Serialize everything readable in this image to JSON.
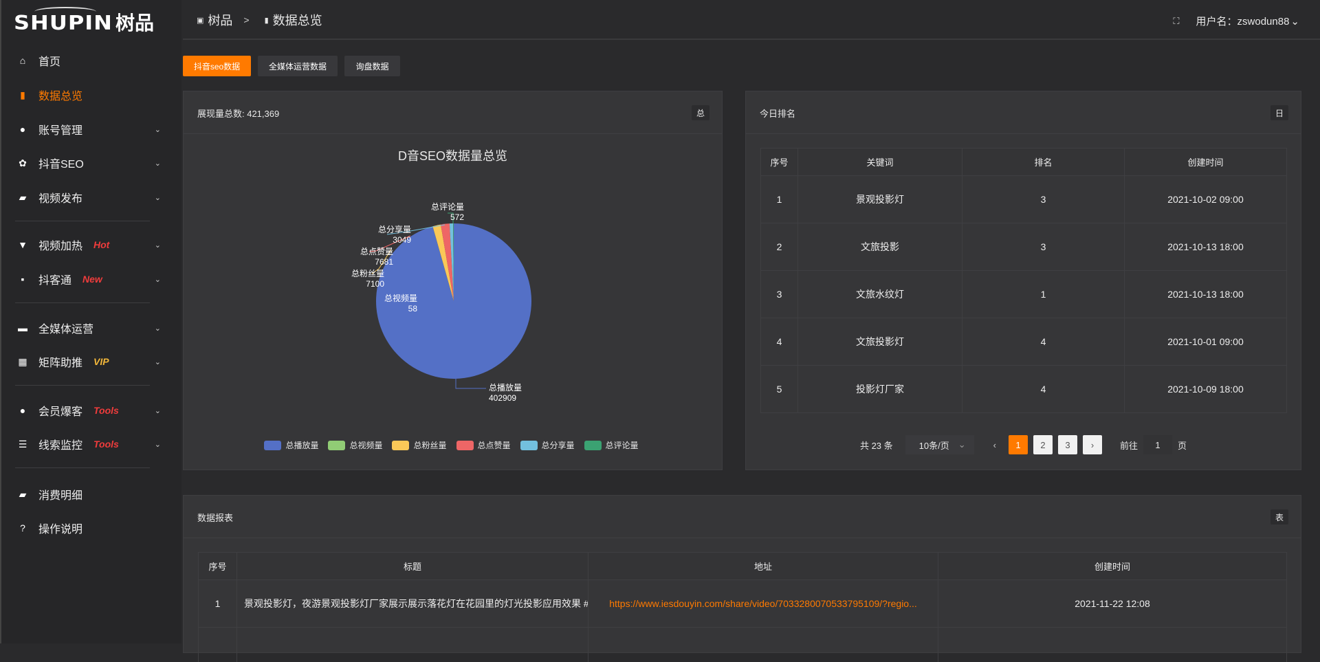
{
  "logo": {
    "en": "SHUPIN",
    "cn": "树品"
  },
  "sidebar": {
    "items": [
      {
        "label": "首页",
        "icon": "home-icon",
        "glyph": "⌂"
      },
      {
        "label": "数据总览",
        "icon": "bar-chart-icon",
        "glyph": "▮",
        "active": true
      },
      {
        "label": "账号管理",
        "icon": "user-icon",
        "glyph": "●"
      },
      {
        "label": "抖音SEO",
        "icon": "gear-icon",
        "glyph": "✿"
      },
      {
        "label": "视频发布",
        "icon": "video-camera-icon",
        "glyph": "▰"
      },
      {
        "label": "视频加热",
        "icon": "sign-icon",
        "glyph": "▼",
        "badge": "Hot"
      },
      {
        "label": "抖客通",
        "icon": "chat-icon",
        "glyph": "▪",
        "badge": "New"
      },
      {
        "label": "全媒体运营",
        "icon": "monitor-icon",
        "glyph": "▬"
      },
      {
        "label": "矩阵助推",
        "icon": "grid-icon",
        "glyph": "▦",
        "badge": "VIP"
      },
      {
        "label": "会员爆客",
        "icon": "user-icon",
        "glyph": "●",
        "badge": "Tools"
      },
      {
        "label": "线索监控",
        "icon": "sliders-icon",
        "glyph": "☰",
        "badge": "Tools"
      },
      {
        "label": "消费明细",
        "icon": "wallet-icon",
        "glyph": "▰"
      },
      {
        "label": "操作说明",
        "icon": "help-icon",
        "glyph": "?"
      }
    ]
  },
  "header": {
    "crumb_root": "树品",
    "crumb_current": "数据总览",
    "user_label": "用户名：zswodun88"
  },
  "tabs": [
    {
      "label": "抖音seo数据",
      "active": true
    },
    {
      "label": "全媒体运营数据"
    },
    {
      "label": "询盘数据"
    }
  ],
  "overview_card": {
    "title": "展现量总数: 421,369",
    "btn": "总"
  },
  "chart_data": {
    "type": "pie",
    "title": "D音SEO数据量总览",
    "legend_position": "bottom",
    "slices": [
      {
        "name": "总播放量",
        "value": 402909,
        "color": "#5470c6"
      },
      {
        "name": "总视频量",
        "value": 58,
        "color": "#91cc75"
      },
      {
        "name": "总粉丝量",
        "value": 7100,
        "color": "#fac858"
      },
      {
        "name": "总点赞量",
        "value": 7681,
        "color": "#ee6666"
      },
      {
        "name": "总分享量",
        "value": 3049,
        "color": "#73c0de"
      },
      {
        "name": "总评论量",
        "value": 572,
        "color": "#3ba272"
      }
    ]
  },
  "ranking": {
    "title": "今日排名",
    "btn": "日",
    "columns": [
      "序号",
      "关键词",
      "排名",
      "创建时间"
    ],
    "rows": [
      [
        "1",
        "景观投影灯",
        "3",
        "2021-10-02 09:00"
      ],
      [
        "2",
        "文旅投影",
        "3",
        "2021-10-13 18:00"
      ],
      [
        "3",
        "文旅水纹灯",
        "1",
        "2021-10-13 18:00"
      ],
      [
        "4",
        "文旅投影灯",
        "4",
        "2021-10-01 09:00"
      ],
      [
        "5",
        "投影灯厂家",
        "4",
        "2021-10-09 18:00"
      ]
    ],
    "pager": {
      "total": "共 23 条",
      "page_size": "10条/页",
      "pages": [
        "1",
        "2",
        "3"
      ],
      "current": "1",
      "goto_label": "前往",
      "goto_value": "1",
      "goto_suffix": "页"
    }
  },
  "report": {
    "title": "数据报表",
    "btn": "表",
    "columns": [
      "序号",
      "标题",
      "地址",
      "创建时间"
    ],
    "rows": [
      [
        "1",
        "景观投影灯，夜游景观投影灯厂家展示展示落花灯在花园里的灯光投影应用效果 #",
        "https://www.iesdouyin.com/share/video/7033280070533795109/?regio...",
        "2021-11-22 12:08"
      ]
    ]
  }
}
